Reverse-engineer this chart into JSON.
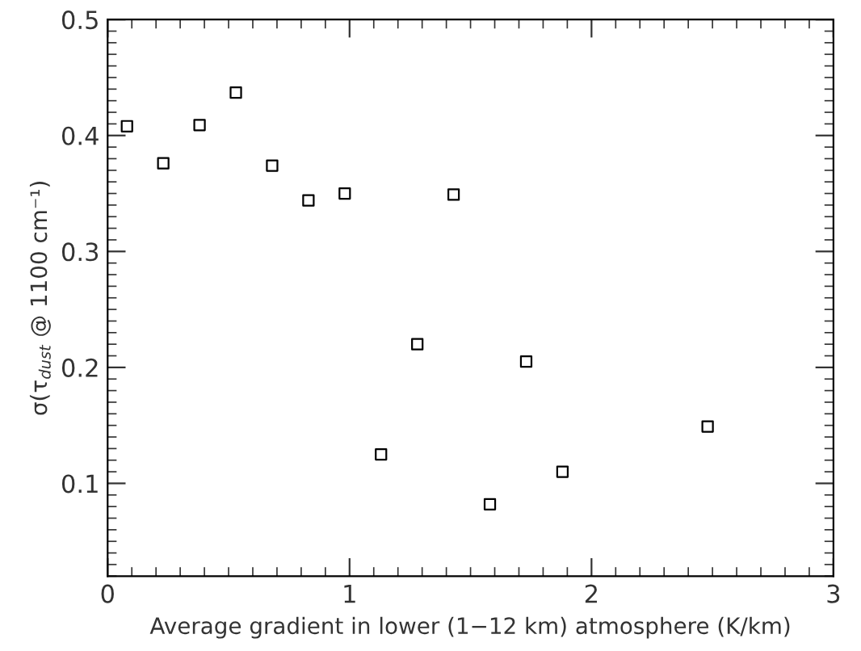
{
  "chart_data": {
    "type": "scatter",
    "xlabel": "Average gradient in lower (1−12 km) atmosphere (K/km)",
    "ylabel": "σ(τ$_{dust}$ @ 1100 cm⁻¹)",
    "xlim": [
      0,
      3
    ],
    "xticks": [
      0,
      1,
      2,
      3
    ],
    "ylim": [
      0.02,
      0.5
    ],
    "yticks": [
      0.1,
      0.2,
      0.3,
      0.4,
      0.5
    ],
    "marker": "square",
    "grid": false,
    "series": [
      {
        "color": "#000000",
        "x": [
          0.08,
          0.23,
          0.38,
          0.53,
          0.68,
          0.83,
          0.98,
          1.13,
          1.28,
          1.43,
          1.58,
          1.73,
          1.88,
          2.48
        ],
        "values": [
          0.408,
          0.376,
          0.409,
          0.437,
          0.374,
          0.344,
          0.35,
          0.125,
          0.22,
          0.349,
          0.082,
          0.205,
          0.11,
          0.149
        ]
      }
    ]
  }
}
